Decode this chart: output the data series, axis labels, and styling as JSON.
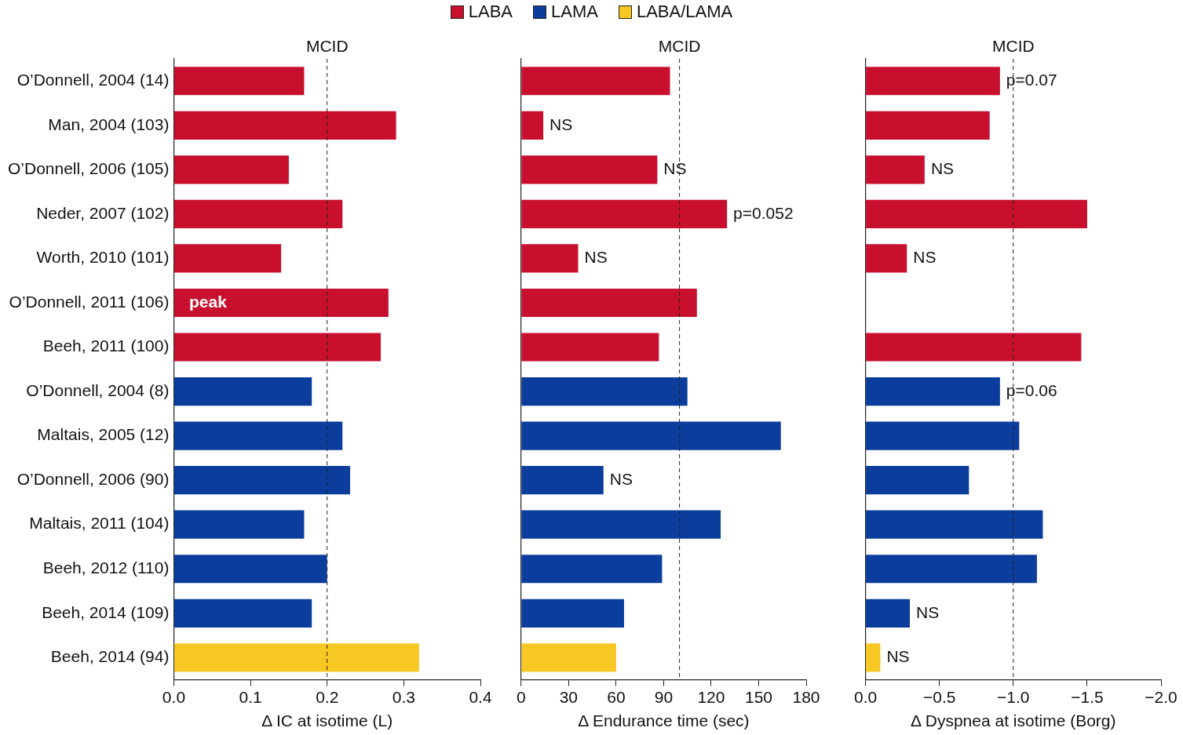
{
  "chart_data": [
    {
      "type": "bar",
      "orientation": "horizontal",
      "stacked": true,
      "xlabel": "Δ IC at isotime (L)",
      "categories": [
        "O’Donnell, 2004 (14)",
        "Man, 2004 (103)",
        "O’Donnell, 2006 (105)",
        "Neder, 2007 (102)",
        "Worth, 2010 (101)",
        "O’Donnell, 2011 (106)",
        "Beeh, 2011 (100)",
        "O’Donnell, 2004 (8)",
        "Maltais, 2005 (12)",
        "O’Donnell, 2006 (90)",
        "Maltais, 2011 (104)",
        "Beeh, 2012 (110)",
        "Beeh, 2014 (109)",
        "Beeh, 2014 (94)"
      ],
      "series": [
        {
          "color": "#c8102e",
          "values": [
            0.17,
            0.29,
            0.15,
            0.22,
            0.14,
            0.28,
            0.27,
            null,
            null,
            null,
            null,
            null,
            null,
            null
          ]
        },
        {
          "color": "#0b3d9c",
          "values": [
            null,
            null,
            null,
            null,
            null,
            null,
            null,
            0.18,
            0.22,
            0.23,
            0.17,
            0.2,
            0.18,
            null
          ]
        },
        {
          "color": "#f7c823",
          "values": [
            null,
            null,
            null,
            null,
            null,
            null,
            null,
            null,
            null,
            null,
            null,
            null,
            null,
            0.32
          ]
        }
      ],
      "xlim": [
        0,
        0.4
      ],
      "xticks": [
        {
          "value": 0,
          "label": "0.0"
        },
        {
          "value": 0.1,
          "label": "0.1"
        },
        {
          "value": 0.2,
          "label": "0.2"
        },
        {
          "value": 0.3,
          "label": "0.3"
        },
        {
          "value": 0.4,
          "label": "0.4"
        }
      ],
      "ref_lines": [
        {
          "axis": "x",
          "value": 0.2,
          "label": "MCID",
          "line_style": "dashed"
        }
      ],
      "annotations": [
        {
          "text": "peak",
          "x": 0.02,
          "y": "O’Donnell, 2011 (106)"
        }
      ],
      "grid": false,
      "legend": false
    },
    {
      "type": "bar",
      "orientation": "horizontal",
      "stacked": true,
      "xlabel": "Δ Endurance time (sec)",
      "tick_labels": "x",
      "categories": [
        "O’Donnell, 2004 (14)",
        "Man, 2004 (103)",
        "O’Donnell, 2006 (105)",
        "Neder, 2007 (102)",
        "Worth, 2010 (101)",
        "O’Donnell, 2011 (106)",
        "Beeh, 2011 (100)",
        "O’Donnell, 2004 (8)",
        "Maltais, 2005 (12)",
        "O’Donnell, 2006 (90)",
        "Maltais, 2011 (104)",
        "Beeh, 2012 (110)",
        "Beeh, 2014 (109)",
        "Beeh, 2014 (94)"
      ],
      "series": [
        {
          "name": "LABA",
          "color": "#c8102e",
          "values": [
            94,
            14,
            86,
            130,
            36,
            111,
            87,
            null,
            null,
            null,
            null,
            null,
            null,
            null
          ]
        },
        {
          "name": "LAMA",
          "color": "#0b3d9c",
          "values": [
            null,
            null,
            null,
            null,
            null,
            null,
            null,
            105,
            164,
            52,
            126,
            89,
            65,
            null
          ]
        },
        {
          "name": "LABA/LAMA",
          "color": "#f7c823",
          "values": [
            null,
            null,
            null,
            null,
            null,
            null,
            null,
            null,
            null,
            null,
            null,
            null,
            null,
            60
          ]
        }
      ],
      "xlim": [
        0,
        180
      ],
      "xticks": [
        0,
        30,
        60,
        90,
        120,
        150,
        180
      ],
      "ref_lines": [
        {
          "axis": "x",
          "value": 100,
          "label": "MCID",
          "line_style": "dashed"
        }
      ],
      "annotations": [
        {
          "text": "NS",
          "x": 14,
          "y": "Man, 2004 (103)"
        },
        {
          "text": "NS",
          "x": 86,
          "y": "O’Donnell, 2006 (105)"
        },
        {
          "text": "p=0.052",
          "x": 130,
          "y": "Neder, 2007 (102)"
        },
        {
          "text": "NS",
          "x": 36,
          "y": "Worth, 2010 (101)"
        },
        {
          "text": "NS",
          "x": 52,
          "y": "O’Donnell, 2006 (90)"
        }
      ],
      "grid": false,
      "legend": "top"
    },
    {
      "type": "bar",
      "orientation": "horizontal",
      "stacked": true,
      "xlabel": "Δ Dyspnea at isotime (Borg)",
      "tick_labels": "x",
      "categories": [
        "O’Donnell, 2004 (14)",
        "Man, 2004 (103)",
        "O’Donnell, 2006 (105)",
        "Neder, 2007 (102)",
        "Worth, 2010 (101)",
        "O’Donnell, 2011 (106)",
        "Beeh, 2011 (100)",
        "O’Donnell, 2004 (8)",
        "Maltais, 2005 (12)",
        "O’Donnell, 2006 (90)",
        "Maltais, 2011 (104)",
        "Beeh, 2012 (110)",
        "Beeh, 2014 (109)",
        "Beeh, 2014 (94)"
      ],
      "series": [
        {
          "color": "#c8102e",
          "values": [
            -0.91,
            -0.84,
            -0.4,
            -1.5,
            -0.28,
            null,
            -1.46,
            null,
            null,
            null,
            null,
            null,
            null,
            null
          ]
        },
        {
          "color": "#0b3d9c",
          "values": [
            null,
            null,
            null,
            null,
            null,
            null,
            null,
            -0.91,
            -1.04,
            -0.7,
            -1.2,
            -1.16,
            -0.3,
            null
          ]
        },
        {
          "color": "#f7c823",
          "values": [
            null,
            null,
            null,
            null,
            null,
            null,
            null,
            null,
            null,
            null,
            null,
            null,
            null,
            -0.1
          ]
        }
      ],
      "xlim": [
        0,
        -2
      ],
      "xticks": [
        {
          "value": 0,
          "label": "0.0"
        },
        {
          "value": -0.5,
          "label": "−0.5"
        },
        {
          "value": -1,
          "label": "−1.0"
        },
        {
          "value": -1.5,
          "label": "−1.5"
        },
        {
          "value": -2,
          "label": "−2.0"
        }
      ],
      "ref_lines": [
        {
          "axis": "x",
          "value": -1,
          "label": "MCID",
          "line_style": "dashed"
        }
      ],
      "annotations": [
        {
          "text": "p=0.07",
          "x": -0.91,
          "y": "O’Donnell, 2004 (14)"
        },
        {
          "text": "NS",
          "x": -0.4,
          "y": "O’Donnell, 2006 (105)"
        },
        {
          "text": "NS",
          "x": -0.28,
          "y": "Worth, 2010 (101)"
        },
        {
          "text": "p=0.06",
          "x": -0.91,
          "y": "O’Donnell, 2004 (8)"
        },
        {
          "text": "NS",
          "x": -0.3,
          "y": "Beeh, 2014 (109)"
        },
        {
          "text": "NS",
          "x": -0.1,
          "y": "Beeh, 2014 (94)"
        }
      ],
      "grid": false,
      "legend": false
    }
  ]
}
